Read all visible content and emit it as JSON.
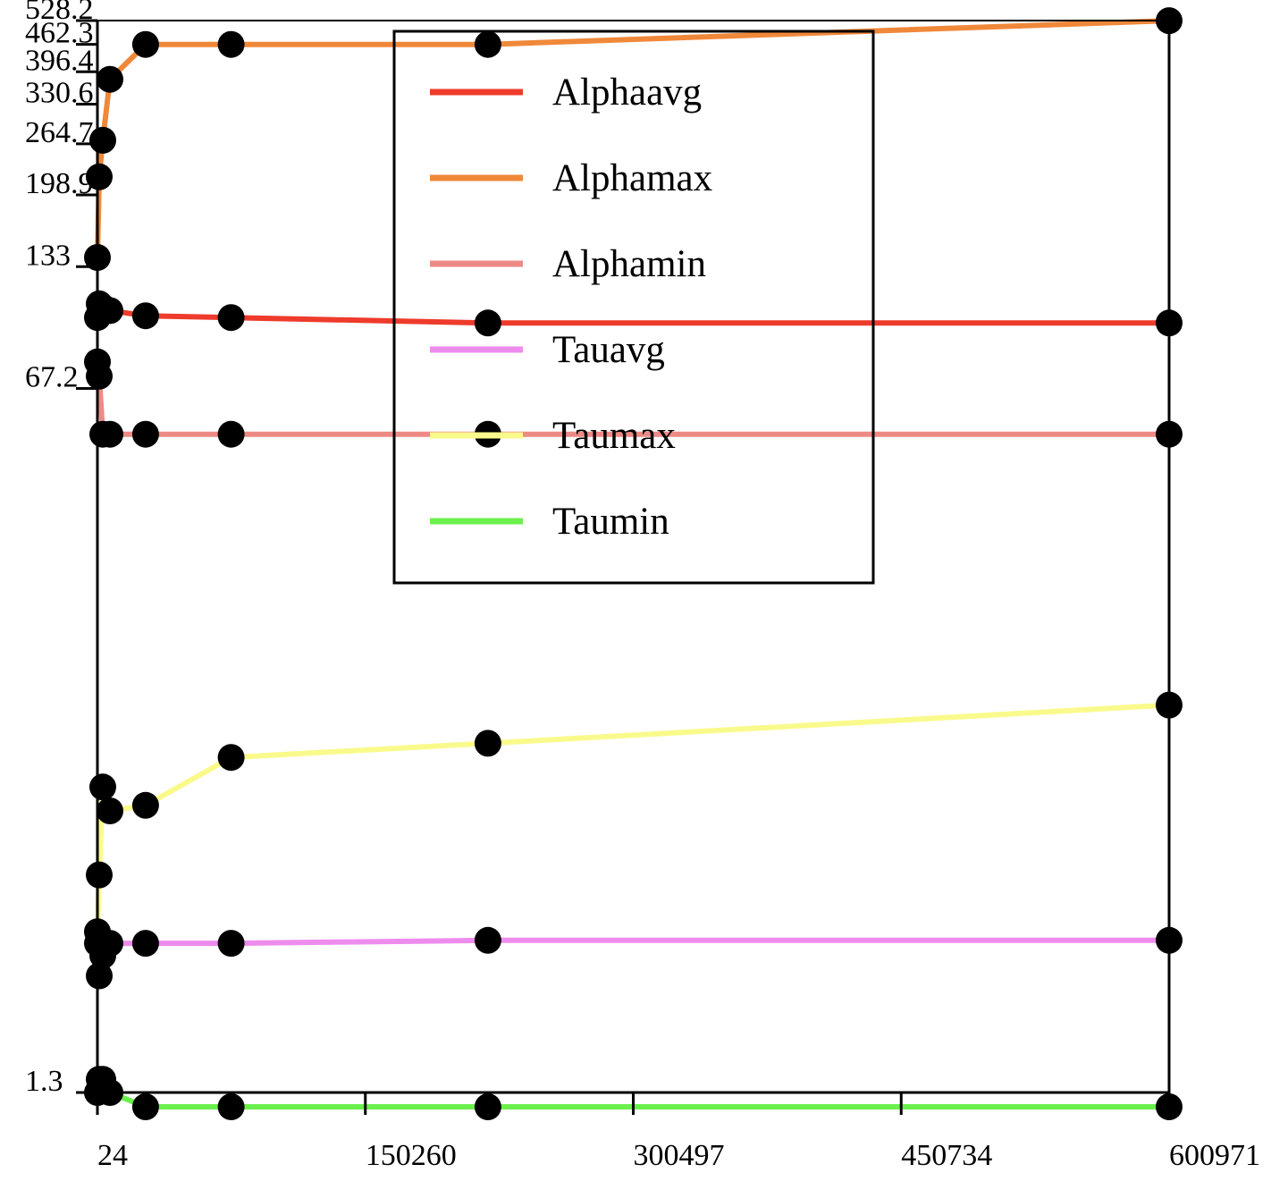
{
  "chart_data": {
    "type": "line",
    "title": "",
    "xlabel": "",
    "ylabel": "",
    "x_ticks": [
      "24",
      "150260",
      "300497",
      "450734",
      "600971"
    ],
    "y_ticks": [
      {
        "value": 1.3,
        "label": "1.3"
      },
      {
        "value": 67.2,
        "label": "67.2"
      },
      {
        "value": 133,
        "label": "133"
      },
      {
        "value": 198.9,
        "label": "198.9"
      },
      {
        "value": 264.7,
        "label": "264.7"
      },
      {
        "value": 330.6,
        "label": "330.6"
      },
      {
        "value": 396.4,
        "label": "396.4"
      },
      {
        "value": 462.3,
        "label": "462.3"
      },
      {
        "value": 528.2,
        "label": "528.2"
      }
    ],
    "xlim": [
      24,
      600971
    ],
    "ylim": [
      1.3,
      528.2
    ],
    "y_scale": "log",
    "grid": false,
    "legend": "top-center",
    "markers": true,
    "x": [
      24,
      1024,
      3024,
      7024,
      27024,
      75024,
      219024,
      600971
    ],
    "series": [
      {
        "name": "Alphaavg",
        "color": "#ee3b2c",
        "values": [
          100,
          108,
          106,
          104,
          101,
          100,
          97,
          97
        ]
      },
      {
        "name": "Alphamax",
        "color": "#f0883a",
        "values": [
          140,
          220,
          270,
          380,
          462,
          462,
          462,
          528
        ]
      },
      {
        "name": "Alphamin",
        "color": "#ee8a85",
        "values": [
          78,
          72,
          52,
          52,
          52,
          52,
          52,
          52
        ]
      },
      {
        "name": "Tauavg",
        "color": "#ee8cee",
        "values": [
          3,
          2.5,
          2.8,
          3.0,
          3.0,
          3.0,
          3.05,
          3.05
        ]
      },
      {
        "name": "Taumax",
        "color": "#fafa8c",
        "values": [
          3.2,
          4.4,
          7.2,
          6.3,
          6.5,
          8.5,
          9.2,
          11.4
        ]
      },
      {
        "name": "Taumin",
        "color": "#6cf04c",
        "values": [
          1.3,
          1.4,
          1.4,
          1.3,
          1.2,
          1.2,
          1.2,
          1.2
        ]
      }
    ]
  }
}
